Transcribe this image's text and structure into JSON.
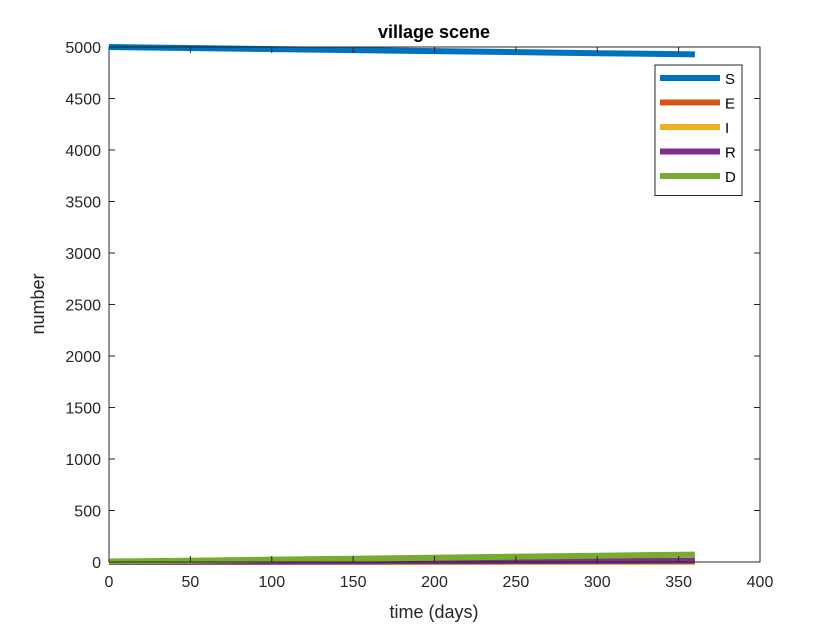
{
  "chart_data": {
    "type": "line",
    "title": "village scene",
    "xlabel": "time (days)",
    "ylabel": "number",
    "xlim": [
      0,
      400
    ],
    "ylim": [
      0,
      5000
    ],
    "xticks": [
      "0",
      "50",
      "100",
      "150",
      "200",
      "250",
      "300",
      "350",
      "400"
    ],
    "yticks": [
      "0",
      "500",
      "1000",
      "1500",
      "2000",
      "2500",
      "3000",
      "3500",
      "4000",
      "4500",
      "5000"
    ],
    "grid": false,
    "legend_location": "top-right",
    "x": [
      0,
      60,
      120,
      180,
      240,
      300,
      360
    ],
    "series": [
      {
        "name": "S",
        "color": "#0072BD",
        "values": [
          5000,
          4988,
          4976,
          4964,
          4952,
          4940,
          4928
        ]
      },
      {
        "name": "E",
        "color": "#D95319",
        "values": [
          2,
          2,
          2,
          3,
          3,
          3,
          3
        ]
      },
      {
        "name": "I",
        "color": "#EDB120",
        "values": [
          0,
          1,
          1,
          1,
          1,
          1,
          2
        ]
      },
      {
        "name": "R",
        "color": "#7E2F8E",
        "values": [
          0,
          2,
          4,
          6,
          8,
          10,
          12
        ]
      },
      {
        "name": "D",
        "color": "#77AC30",
        "values": [
          5,
          15,
          27,
          38,
          50,
          61,
          72
        ]
      }
    ]
  }
}
